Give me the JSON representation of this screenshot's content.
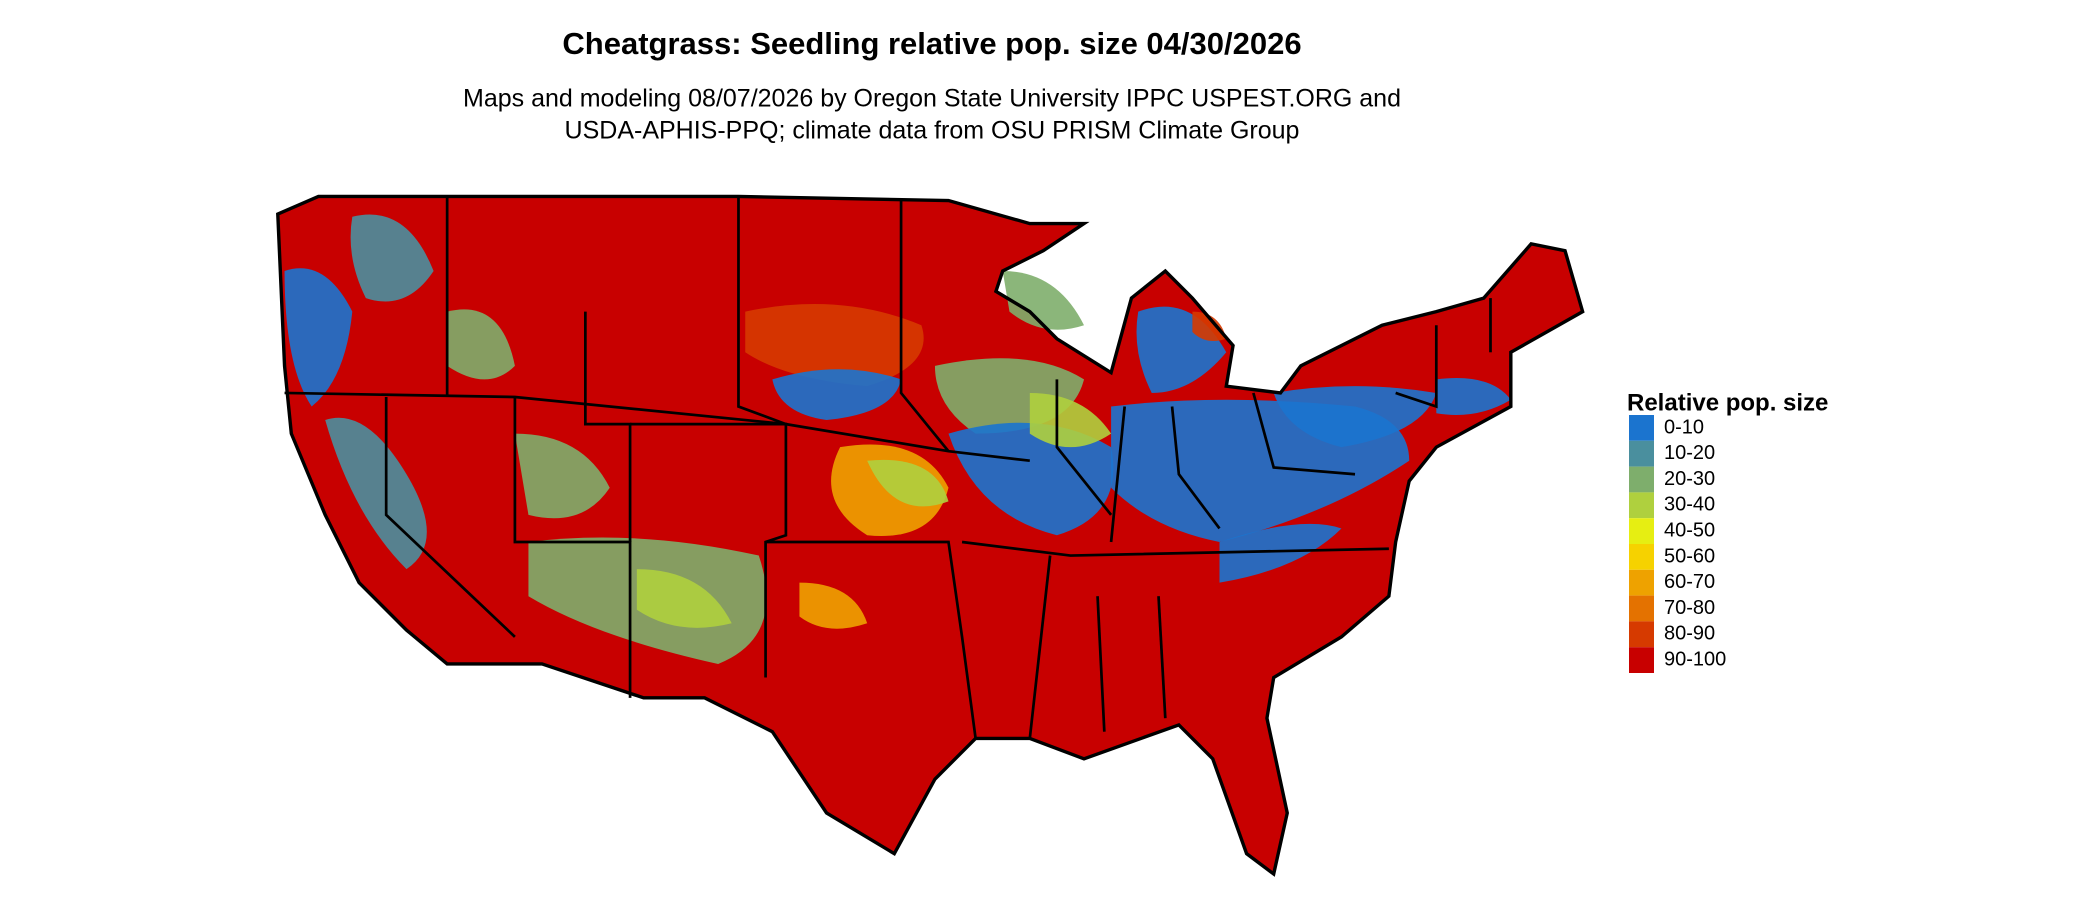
{
  "header": {
    "title": "Cheatgrass: Seedling relative pop. size 04/30/2026",
    "subtitle_lines": [
      "Maps and modeling 08/07/2026 by Oregon State University IPPC USPEST.ORG and",
      "USDA-APHIS-PPQ; climate data from OSU PRISM Climate Group"
    ]
  },
  "legend": {
    "title": "Relative pop. size",
    "items": [
      {
        "label": "0-10",
        "color": "#1b74cf"
      },
      {
        "label": "10-20",
        "color": "#4a8f9e"
      },
      {
        "label": "20-30",
        "color": "#7eae6c"
      },
      {
        "label": "30-40",
        "color": "#afd03e"
      },
      {
        "label": "40-50",
        "color": "#e6ee12"
      },
      {
        "label": "50-60",
        "color": "#f6d200"
      },
      {
        "label": "60-70",
        "color": "#eea200"
      },
      {
        "label": "70-80",
        "color": "#e47200"
      },
      {
        "label": "80-90",
        "color": "#d63a00"
      },
      {
        "label": "90-100",
        "color": "#c80000"
      }
    ]
  }
}
